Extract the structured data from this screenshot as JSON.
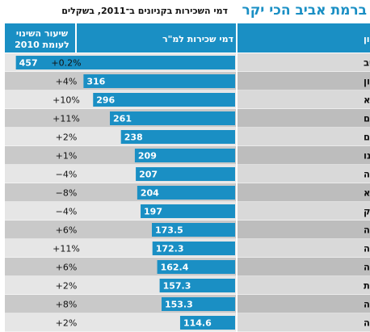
{
  "header": {
    "title": "ברמת אביב הכי יקר",
    "subtitle": "דמי השכירות בקניונים ב־2011, בשקלים"
  },
  "columns": {
    "mall": "קניון",
    "rent": "דמי שכירות למ\"ר",
    "change_line1": "שיעור השינוי",
    "change_line2": "לעומת 2010"
  },
  "colors": {
    "accent": "#1a8fc4",
    "header_bg": "#1a8fc4",
    "bar": "#1a8fc4",
    "row_light": "#e6e6e6",
    "row_dark": "#c9c9c9",
    "name_col_light": "#d9d9d9",
    "name_col_dark": "#bdbdbd"
  },
  "chart_data": {
    "type": "bar",
    "orientation": "horizontal",
    "title": "ברמת אביב הכי יקר",
    "subtitle": "דמי השכירות בקניונים ב־2011, בשקלים",
    "categories": [
      "רמת אביב",
      "קניון איילון",
      "מגדלי עזריאלי ת\"א",
      "מלחה ירושלים",
      "גבעתיים",
      "קריית אונו",
      "שבעת הכוכבים הרצליה",
      "קניון ערים כפר סבא",
      "קריון קריית ביאליק",
      "אבנת פתח תקווה",
      "קניון חדרה",
      "גרנד קניון חיפה",
      "רחובות",
      "קניון השרון נתניה",
      "רננים רעננה"
    ],
    "values": [
      457,
      316,
      296,
      261,
      238,
      209,
      207,
      204,
      197,
      173.5,
      172.3,
      162.4,
      157.3,
      153.3,
      114.6
    ],
    "value_labels": [
      "457",
      "316",
      "296",
      "261",
      "238",
      "209",
      "207",
      "204",
      "197",
      "173.5",
      "172.3",
      "162.4",
      "157.3",
      "153.3",
      "114.6"
    ],
    "changes": [
      "+0.2%",
      "+4%",
      "+10%",
      "+11%",
      "+2%",
      "+1%",
      "−4%",
      "−8%",
      "−4%",
      "+6%",
      "+11%",
      "+6%",
      "+2%",
      "+8%",
      "+2%"
    ],
    "xlim": [
      0,
      480
    ],
    "grid": false,
    "legend": "none"
  }
}
